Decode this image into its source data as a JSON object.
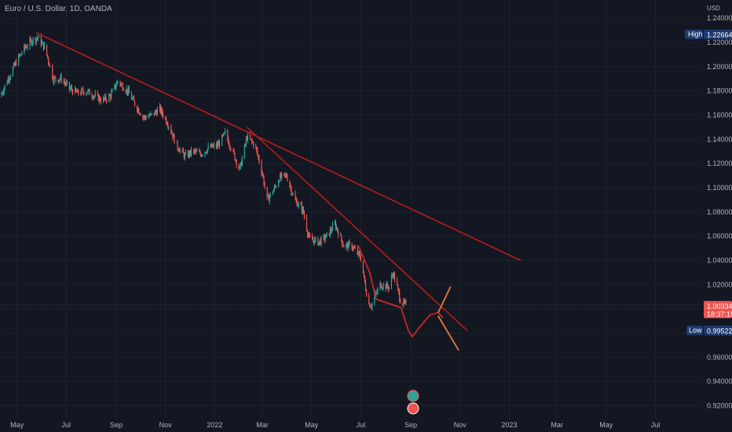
{
  "symbol": {
    "title": "Euro / U.S. Dollar, 1D, OANDA",
    "currency": "USD"
  },
  "colors": {
    "background": "#131722",
    "grid": "#1e222d",
    "up": "#26a69a",
    "down": "#ef5350",
    "trendline": "#b71c1c",
    "projection": "#c62828",
    "projection_alt": "#e8773a",
    "price_badge": "#ef5350",
    "label_badge": "#1e3a6e",
    "text": "#b2b5be"
  },
  "markers": {
    "price": "1.00334",
    "countdown": "18:37:19",
    "high_label": "High",
    "high_value": "1.22664",
    "low_label": "Low",
    "low_value": "0.99522"
  },
  "events": [
    {
      "icon": "flag-icon"
    },
    {
      "icon": "dividend-icon"
    }
  ],
  "chart_data": {
    "type": "candlestick",
    "title": "Euro / U.S. Dollar, 1D, OANDA",
    "ylabel": "USD",
    "ylim": [
      0.91,
      1.255
    ],
    "xlim": [
      "2021-04-10",
      "2023-08-26"
    ],
    "y_ticks": [
      "0.92000",
      "0.94000",
      "0.96000",
      "0.98000",
      "1.00000",
      "1.02000",
      "1.04000",
      "1.06000",
      "1.08000",
      "1.10000",
      "1.12000",
      "1.14000",
      "1.16000",
      "1.18000",
      "1.20000",
      "1.22000",
      "1.24000"
    ],
    "x_ticks": [
      {
        "label": "May",
        "date": "2021-05-01"
      },
      {
        "label": "Jul",
        "date": "2021-07-01"
      },
      {
        "label": "Sep",
        "date": "2021-09-01"
      },
      {
        "label": "Nov",
        "date": "2021-11-01"
      },
      {
        "label": "2022",
        "date": "2022-01-01"
      },
      {
        "label": "Mar",
        "date": "2022-03-01"
      },
      {
        "label": "May",
        "date": "2022-05-01"
      },
      {
        "label": "Jul",
        "date": "2022-07-01"
      },
      {
        "label": "Sep",
        "date": "2022-09-01"
      },
      {
        "label": "Nov",
        "date": "2022-11-01"
      },
      {
        "label": "2023",
        "date": "2023-01-01"
      },
      {
        "label": "Mar",
        "date": "2023-03-01"
      },
      {
        "label": "May",
        "date": "2023-05-01"
      },
      {
        "label": "Jul",
        "date": "2023-07-01"
      }
    ],
    "series": [
      {
        "x": [
          "2021-04-10",
          "2021-04-20",
          "2021-05-01",
          "2021-05-10",
          "2021-05-20",
          "2021-05-27",
          "2021-06-05",
          "2021-06-15",
          "2021-06-25",
          "2021-07-05",
          "2021-07-15",
          "2021-07-25",
          "2021-08-05",
          "2021-08-15",
          "2021-08-25",
          "2021-09-03",
          "2021-09-15",
          "2021-09-25",
          "2021-10-05",
          "2021-10-15",
          "2021-10-25",
          "2021-11-05",
          "2021-11-15",
          "2021-11-25",
          "2021-12-05",
          "2021-12-15",
          "2021-12-25",
          "2022-01-05",
          "2022-01-14",
          "2022-01-22",
          "2022-02-01",
          "2022-02-10",
          "2022-02-20",
          "2022-03-01",
          "2022-03-07",
          "2022-03-15",
          "2022-03-22",
          "2022-03-31",
          "2022-04-10",
          "2022-04-20",
          "2022-04-28",
          "2022-05-10",
          "2022-05-20",
          "2022-05-30",
          "2022-06-10",
          "2022-06-20",
          "2022-07-01",
          "2022-07-10",
          "2022-07-14",
          "2022-07-25",
          "2022-08-05",
          "2022-08-10",
          "2022-08-20",
          "2022-08-26"
        ],
        "close": [
          1.175,
          1.19,
          1.205,
          1.215,
          1.222,
          1.224,
          1.215,
          1.19,
          1.19,
          1.182,
          1.178,
          1.18,
          1.176,
          1.172,
          1.176,
          1.188,
          1.18,
          1.168,
          1.158,
          1.16,
          1.165,
          1.152,
          1.135,
          1.126,
          1.13,
          1.128,
          1.133,
          1.135,
          1.145,
          1.132,
          1.115,
          1.142,
          1.135,
          1.112,
          1.09,
          1.098,
          1.108,
          1.11,
          1.09,
          1.082,
          1.058,
          1.055,
          1.06,
          1.07,
          1.052,
          1.052,
          1.042,
          1.005,
          1.003,
          1.02,
          1.018,
          1.03,
          1.005,
          1.0033
        ]
      }
    ],
    "price_line": 1.00334,
    "high": 1.22664,
    "low": 0.99522,
    "drawings": [
      {
        "name": "upper-trendline",
        "from": [
          "2021-05-25",
          1.228
        ],
        "to": [
          "2023-01-15",
          1.04
        ]
      },
      {
        "name": "lower-trendline",
        "from": [
          "2022-02-10",
          1.15
        ],
        "to": [
          "2022-11-10",
          0.982
        ]
      },
      {
        "name": "projection-path",
        "points": [
          [
            "2022-06-28",
            1.052
          ],
          [
            "2022-07-12",
            1.03
          ],
          [
            "2022-07-20",
            1.008
          ],
          [
            "2022-08-20",
            1.001
          ],
          [
            "2022-08-29",
            0.982
          ],
          [
            "2022-09-03",
            0.977
          ],
          [
            "2022-09-12",
            0.985
          ],
          [
            "2022-09-25",
            0.995
          ],
          [
            "2022-10-05",
            0.997
          ],
          [
            "2022-10-10",
            0.993
          ]
        ]
      },
      {
        "name": "projection-arrow",
        "points": [
          [
            "2022-10-05",
            0.997
          ],
          [
            "2022-10-20",
            1.018
          ]
        ]
      },
      {
        "name": "projection-down",
        "points": [
          [
            "2022-10-05",
            0.994
          ],
          [
            "2022-10-30",
            0.966
          ]
        ]
      }
    ]
  }
}
